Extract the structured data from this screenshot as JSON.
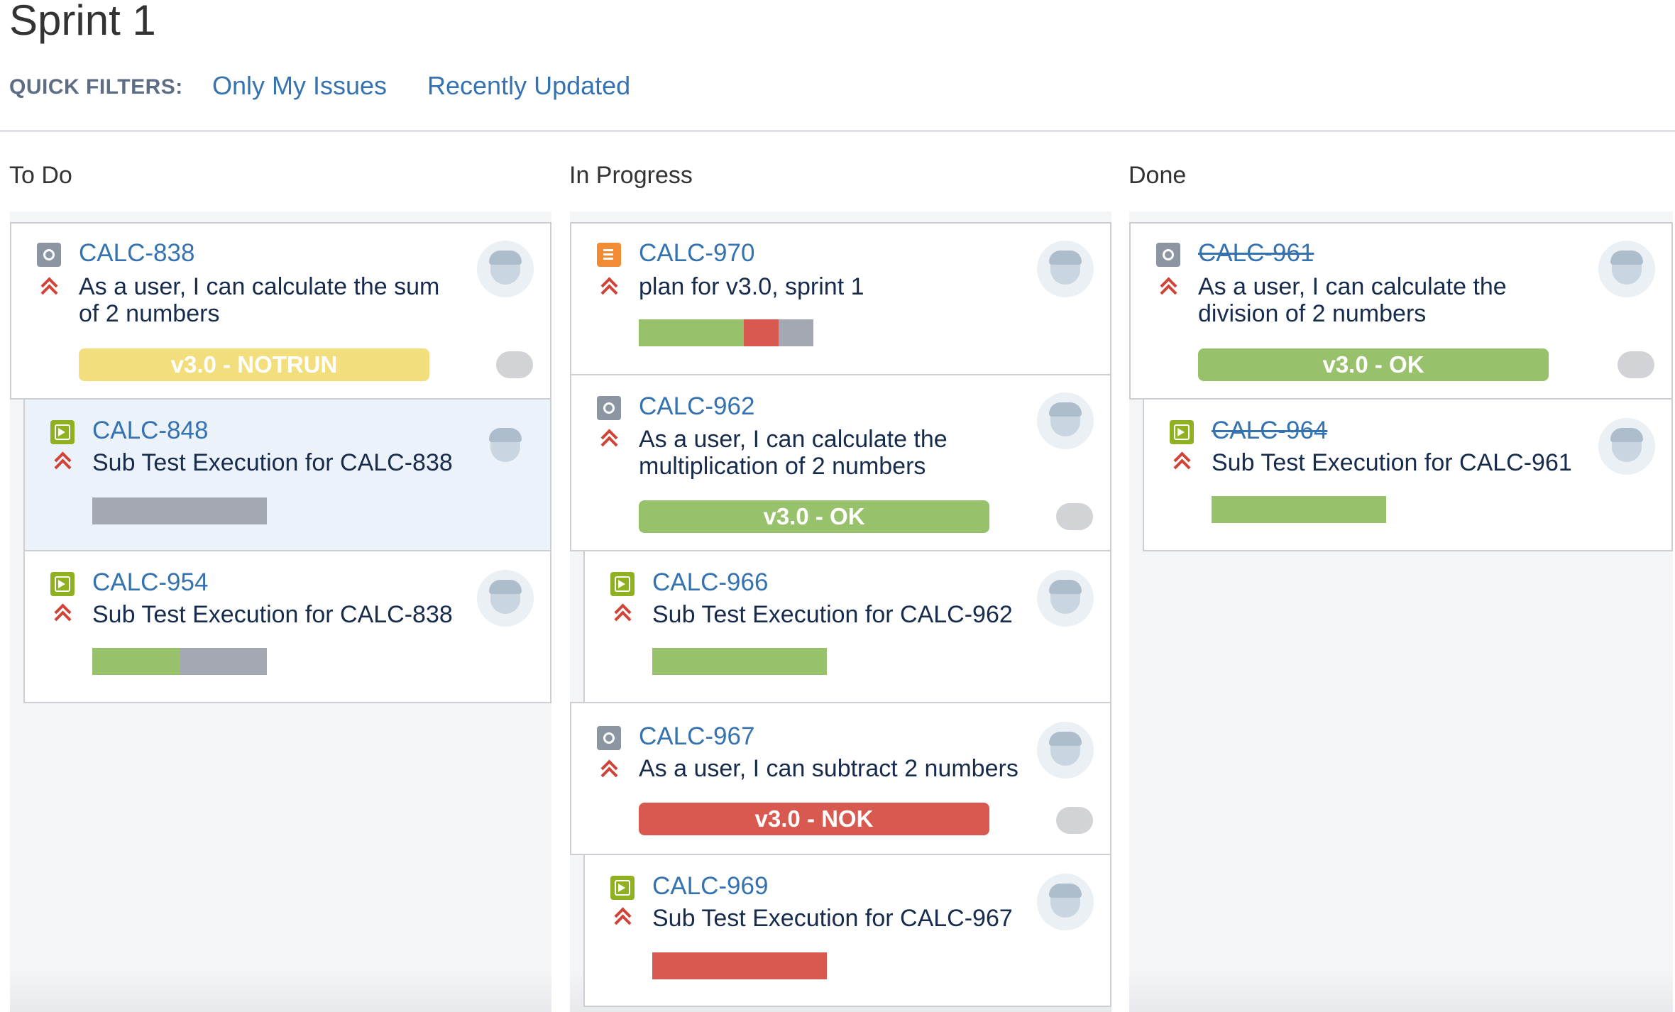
{
  "sprint": {
    "title": "Sprint 1"
  },
  "quick_filters": {
    "label": "QUICK FILTERS:",
    "items": [
      "Only My Issues",
      "Recently Updated"
    ]
  },
  "columns": {
    "todo": {
      "title": "To Do",
      "cards": [
        {
          "key": "CALC-838",
          "summary_line1": "As a user, I can calculate the sum",
          "summary_line2": "of 2 numbers",
          "type": "test-icon",
          "priority": "highest-priority-icon",
          "badge": "v3.0 - NOTRUN"
        },
        {
          "key": "CALC-848",
          "summary": "Sub Test Execution for CALC-838",
          "type": "test-execution-icon",
          "priority": "highest-priority-icon",
          "progress": {
            "passed": 0.0,
            "failed": 0.0,
            "todo": 1.0
          }
        },
        {
          "key": "CALC-954",
          "summary": "Sub Test Execution for CALC-838",
          "type": "test-execution-icon",
          "priority": "highest-priority-icon",
          "progress": {
            "passed": 0.5,
            "failed": 0.0,
            "todo": 0.5
          }
        }
      ]
    },
    "in_progress": {
      "title": "In Progress",
      "cards": [
        {
          "key": "CALC-970",
          "summary": "plan for v3.0, sprint 1",
          "type": "test-plan-icon",
          "priority": "highest-priority-icon",
          "progress": {
            "passed": 0.6,
            "failed": 0.2,
            "todo": 0.2
          }
        },
        {
          "key": "CALC-962",
          "summary_line1": "As a user, I can calculate the",
          "summary_line2": "multiplication of 2 numbers",
          "type": "test-icon",
          "priority": "highest-priority-icon",
          "badge": "v3.0 - OK"
        },
        {
          "key": "CALC-966",
          "summary": "Sub Test Execution for CALC-962",
          "type": "test-execution-icon",
          "priority": "highest-priority-icon",
          "progress": {
            "passed": 1.0,
            "failed": 0.0,
            "todo": 0.0
          }
        },
        {
          "key": "CALC-967",
          "summary": "As a user, I can subtract 2 numbers",
          "type": "test-icon",
          "priority": "highest-priority-icon",
          "badge": "v3.0 - NOK"
        },
        {
          "key": "CALC-969",
          "summary": "Sub Test Execution for CALC-967",
          "type": "test-execution-icon",
          "priority": "highest-priority-icon",
          "progress": {
            "passed": 0.0,
            "failed": 1.0,
            "todo": 0.0
          }
        }
      ]
    },
    "done": {
      "title": "Done",
      "cards": [
        {
          "key": "CALC-961",
          "summary_line1": "As a user, I can calculate the",
          "summary_line2": "division of 2 numbers",
          "type": "test-icon",
          "priority": "highest-priority-icon",
          "badge": "v3.0 - OK"
        },
        {
          "key": "CALC-964",
          "summary": "Sub Test Execution for CALC-961",
          "type": "test-execution-icon",
          "priority": "highest-priority-icon",
          "progress": {
            "passed": 1.0,
            "failed": 0.0,
            "todo": 0.0
          }
        }
      ]
    }
  },
  "colors": {
    "passed": "#97c16b",
    "failed": "#d7594f",
    "todo": "#a3a8b2",
    "notrun": "#f2de7c",
    "link": "#3572b0",
    "priority": "#d04437"
  }
}
